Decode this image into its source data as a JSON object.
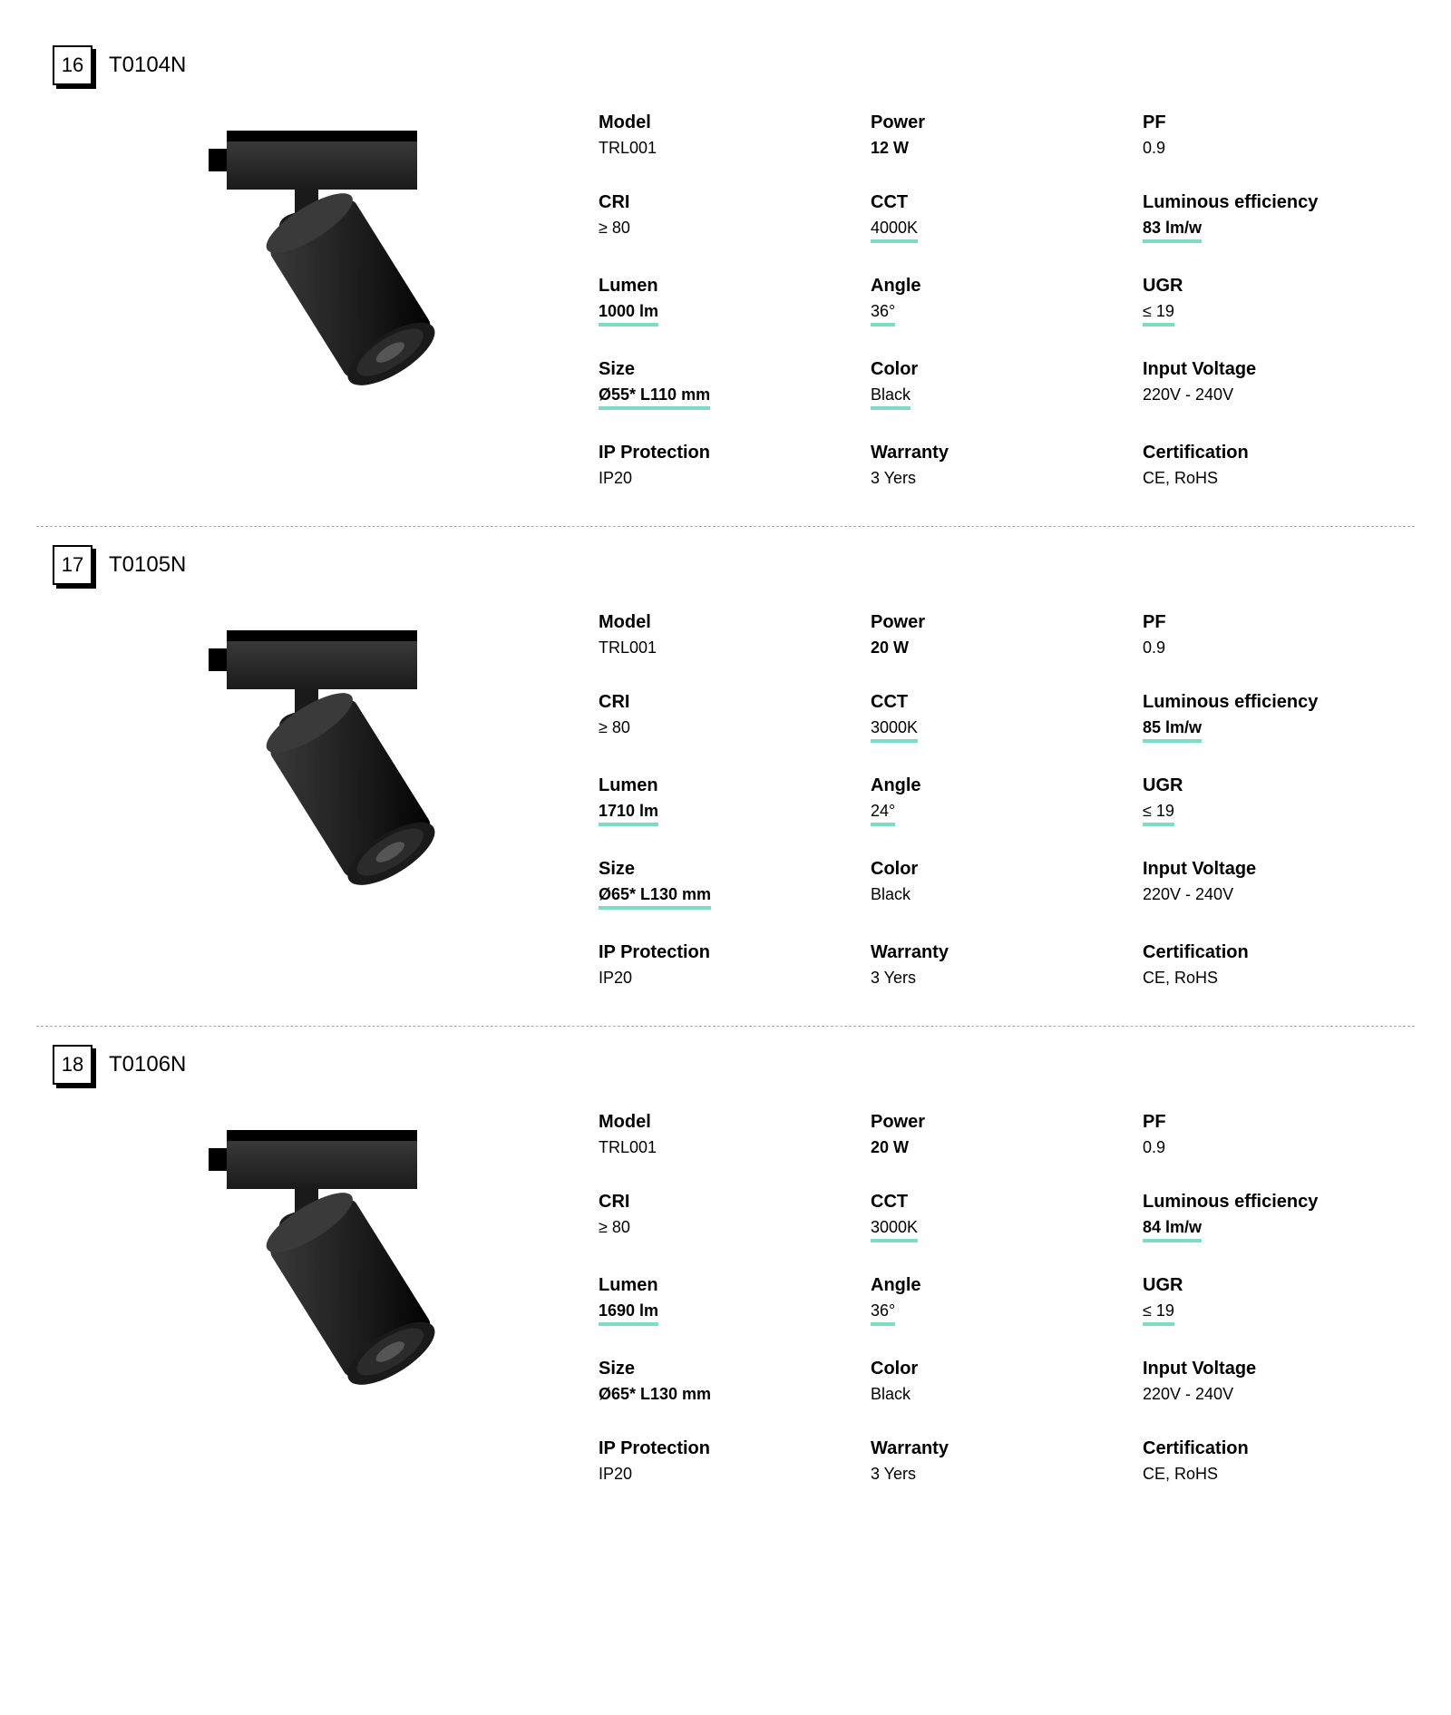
{
  "colors": {
    "highlight": "#7fdcc4",
    "text": "#000000",
    "background": "#ffffff",
    "divider": "#aaaaaa",
    "lamp_body": "#1a1a1a",
    "lamp_body_light": "#3a3a3a",
    "lamp_lens": "#2b2b2b"
  },
  "spec_labels": {
    "model": "Model",
    "power": "Power",
    "pf": "PF",
    "cri": "CRI",
    "cct": "CCT",
    "eff": "Luminous efficiency",
    "lumen": "Lumen",
    "angle": "Angle",
    "ugr": "UGR",
    "size": "Size",
    "color": "Color",
    "voltage": "Input Voltage",
    "ip": "IP Protection",
    "warranty": "Warranty",
    "cert": "Certification"
  },
  "products": [
    {
      "index": "16",
      "sku": "T0104N",
      "specs": {
        "model": {
          "value": "TRL001",
          "highlight": false,
          "bold": false
        },
        "power": {
          "value": "12 W",
          "highlight": false,
          "bold": true
        },
        "pf": {
          "value": "0.9",
          "highlight": false,
          "bold": false
        },
        "cri": {
          "value": "≥ 80",
          "highlight": false,
          "bold": false
        },
        "cct": {
          "value": "4000K",
          "highlight": true,
          "bold": false
        },
        "eff": {
          "value": "83 lm/w",
          "highlight": true,
          "bold": true
        },
        "lumen": {
          "value": "1000 lm",
          "highlight": true,
          "bold": true
        },
        "angle": {
          "value": "36°",
          "highlight": true,
          "bold": false
        },
        "ugr": {
          "value": "≤ 19",
          "highlight": true,
          "bold": false
        },
        "size": {
          "value": "Ø55* L110 mm",
          "highlight": true,
          "bold": true
        },
        "color": {
          "value": "Black",
          "highlight": true,
          "bold": false
        },
        "voltage": {
          "value": "220V - 240V",
          "highlight": false,
          "bold": false
        },
        "ip": {
          "value": "IP20",
          "highlight": false,
          "bold": false
        },
        "warranty": {
          "value": "3 Yers",
          "highlight": false,
          "bold": false
        },
        "cert": {
          "value": "CE, RoHS",
          "highlight": false,
          "bold": false
        }
      }
    },
    {
      "index": "17",
      "sku": "T0105N",
      "specs": {
        "model": {
          "value": "TRL001",
          "highlight": false,
          "bold": false
        },
        "power": {
          "value": "20 W",
          "highlight": false,
          "bold": true
        },
        "pf": {
          "value": "0.9",
          "highlight": false,
          "bold": false
        },
        "cri": {
          "value": "≥ 80",
          "highlight": false,
          "bold": false
        },
        "cct": {
          "value": "3000K",
          "highlight": true,
          "bold": false
        },
        "eff": {
          "value": "85 lm/w",
          "highlight": true,
          "bold": true
        },
        "lumen": {
          "value": "1710 lm",
          "highlight": true,
          "bold": true
        },
        "angle": {
          "value": "24°",
          "highlight": true,
          "bold": false
        },
        "ugr": {
          "value": "≤ 19",
          "highlight": true,
          "bold": false
        },
        "size": {
          "value": "Ø65* L130 mm",
          "highlight": true,
          "bold": true
        },
        "color": {
          "value": "Black",
          "highlight": false,
          "bold": false
        },
        "voltage": {
          "value": "220V - 240V",
          "highlight": false,
          "bold": false
        },
        "ip": {
          "value": "IP20",
          "highlight": false,
          "bold": false
        },
        "warranty": {
          "value": "3 Yers",
          "highlight": false,
          "bold": false
        },
        "cert": {
          "value": "CE, RoHS",
          "highlight": false,
          "bold": false
        }
      }
    },
    {
      "index": "18",
      "sku": "T0106N",
      "specs": {
        "model": {
          "value": "TRL001",
          "highlight": false,
          "bold": false
        },
        "power": {
          "value": "20 W",
          "highlight": false,
          "bold": true
        },
        "pf": {
          "value": "0.9",
          "highlight": false,
          "bold": false
        },
        "cri": {
          "value": "≥ 80",
          "highlight": false,
          "bold": false
        },
        "cct": {
          "value": "3000K",
          "highlight": true,
          "bold": false
        },
        "eff": {
          "value": "84 lm/w",
          "highlight": true,
          "bold": true
        },
        "lumen": {
          "value": "1690 lm",
          "highlight": true,
          "bold": true
        },
        "angle": {
          "value": "36°",
          "highlight": true,
          "bold": false
        },
        "ugr": {
          "value": "≤ 19",
          "highlight": true,
          "bold": false
        },
        "size": {
          "value": "Ø65* L130 mm",
          "highlight": false,
          "bold": true
        },
        "color": {
          "value": "Black",
          "highlight": false,
          "bold": false
        },
        "voltage": {
          "value": "220V - 240V",
          "highlight": false,
          "bold": false
        },
        "ip": {
          "value": "IP20",
          "highlight": false,
          "bold": false
        },
        "warranty": {
          "value": "3 Yers",
          "highlight": false,
          "bold": false
        },
        "cert": {
          "value": "CE, RoHS",
          "highlight": false,
          "bold": false
        }
      }
    }
  ],
  "spec_order": [
    "model",
    "power",
    "pf",
    "cri",
    "cct",
    "eff",
    "lumen",
    "angle",
    "ugr",
    "size",
    "color",
    "voltage",
    "ip",
    "warranty",
    "cert"
  ]
}
